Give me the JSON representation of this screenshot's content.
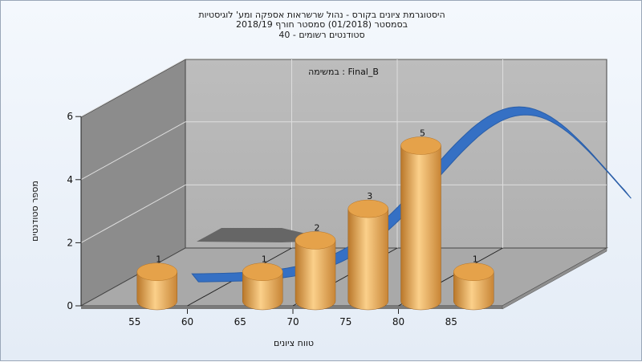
{
  "header": {
    "line1": "היסטוגרמת ציונים בקורס - נהול שרשראות אספקה ומע' לוגיסטיות",
    "line2": "בסמסטר  (01/2018)  סמסטר חורף  2018/19",
    "line3": "סטודנטים רשומים - 40"
  },
  "chart_data": {
    "type": "bar",
    "subtitle": "במשימה : Final_B",
    "xlabel": "טווח ציונים",
    "ylabel": "מספר סטודנטים",
    "x_ticks": [
      "55",
      "60",
      "65",
      "70",
      "75",
      "80",
      "85"
    ],
    "y_ticks": [
      "0",
      "2",
      "4",
      "6"
    ],
    "ylim": [
      0,
      6
    ],
    "categories": [
      "55",
      "65",
      "70",
      "75",
      "80",
      "85"
    ],
    "values": [
      1,
      1,
      2,
      3,
      5,
      1
    ],
    "value_labels": [
      "1",
      "1",
      "2",
      "3",
      "5",
      "1"
    ],
    "curve": "normal-distribution overlay",
    "colors": {
      "bar": "#e3a449",
      "curve": "#3570c4",
      "wall_back": "#b4b4b4",
      "wall_side": "#8a8a8a",
      "floor": "#a8a8a8"
    }
  }
}
